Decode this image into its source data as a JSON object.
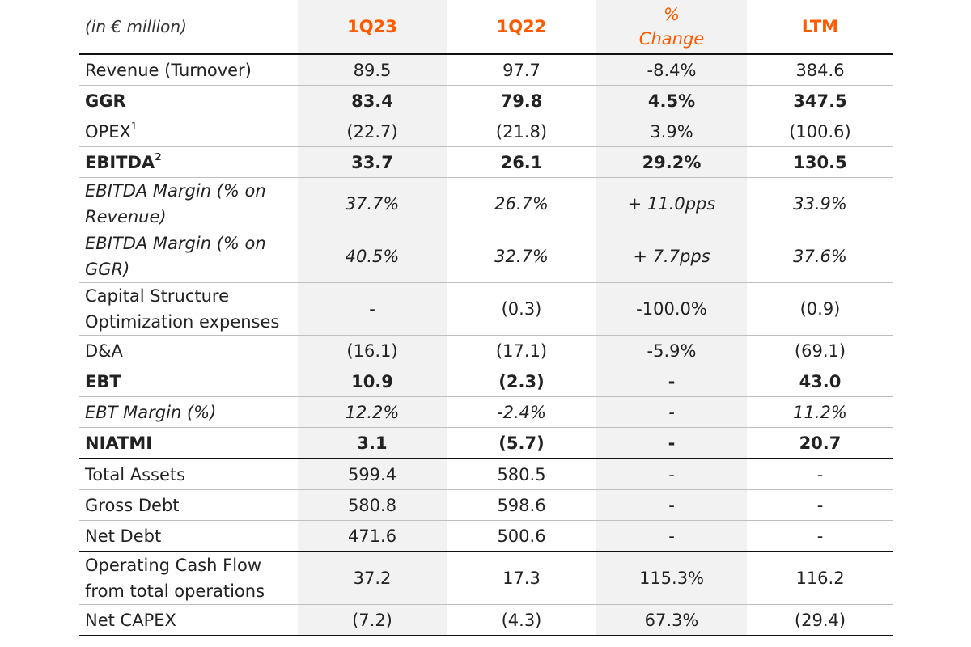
{
  "header": {
    "unit": "(in € million)",
    "col1": "1Q23",
    "col2": "1Q22",
    "col3_line1": "%",
    "col3_line2": "Change",
    "col4": "LTM"
  },
  "rows": [
    {
      "label": "Revenue (Turnover)",
      "v": [
        "89.5",
        "97.7",
        "-8.4%",
        "384.6"
      ]
    },
    {
      "label": "GGR",
      "v": [
        "83.4",
        "79.8",
        "4.5%",
        "347.5"
      ]
    },
    {
      "label": "OPEX",
      "sup": "1",
      "v": [
        "(22.7)",
        "(21.8)",
        "3.9%",
        "(100.6)"
      ]
    },
    {
      "label": "EBITDA",
      "sup": "2",
      "v": [
        "33.7",
        "26.1",
        "29.2%",
        "130.5"
      ]
    },
    {
      "label_line1": "EBITDA Margin (% on",
      "label_line2": "Revenue)",
      "v": [
        "37.7%",
        "26.7%",
        "+ 11.0pps",
        "33.9%"
      ]
    },
    {
      "label_line1": "EBITDA Margin (% on",
      "label_line2": "GGR)",
      "v": [
        "40.5%",
        "32.7%",
        "+ 7.7pps",
        "37.6%"
      ]
    },
    {
      "label_line1": "Capital Structure",
      "label_line2": "Optimization expenses",
      "v": [
        "-",
        "(0.3)",
        "-100.0%",
        "(0.9)"
      ]
    },
    {
      "label": "D&A",
      "v": [
        "(16.1)",
        "(17.1)",
        "-5.9%",
        "(69.1)"
      ]
    },
    {
      "label": "EBT",
      "v": [
        "10.9",
        "(2.3)",
        "-",
        "43.0"
      ]
    },
    {
      "label": "EBT Margin (%)",
      "v": [
        "12.2%",
        "-2.4%",
        "-",
        "11.2%"
      ]
    },
    {
      "label": "NIATMI",
      "v": [
        "3.1",
        "(5.7)",
        "-",
        "20.7"
      ]
    },
    {
      "label": "Total Assets",
      "v": [
        "599.4",
        "580.5",
        "-",
        "-"
      ]
    },
    {
      "label": "Gross Debt",
      "v": [
        "580.8",
        "598.6",
        "-",
        "-"
      ]
    },
    {
      "label": "Net Debt",
      "v": [
        "471.6",
        "500.6",
        "-",
        "-"
      ]
    },
    {
      "label_line1": "Operating Cash Flow",
      "label_line2": "from total operations",
      "v": [
        "37.2",
        "17.3",
        "115.3%",
        "116.2"
      ]
    },
    {
      "label": "Net CAPEX",
      "v": [
        "(7.2)",
        "(4.3)",
        "67.3%",
        "(29.4)"
      ]
    }
  ]
}
